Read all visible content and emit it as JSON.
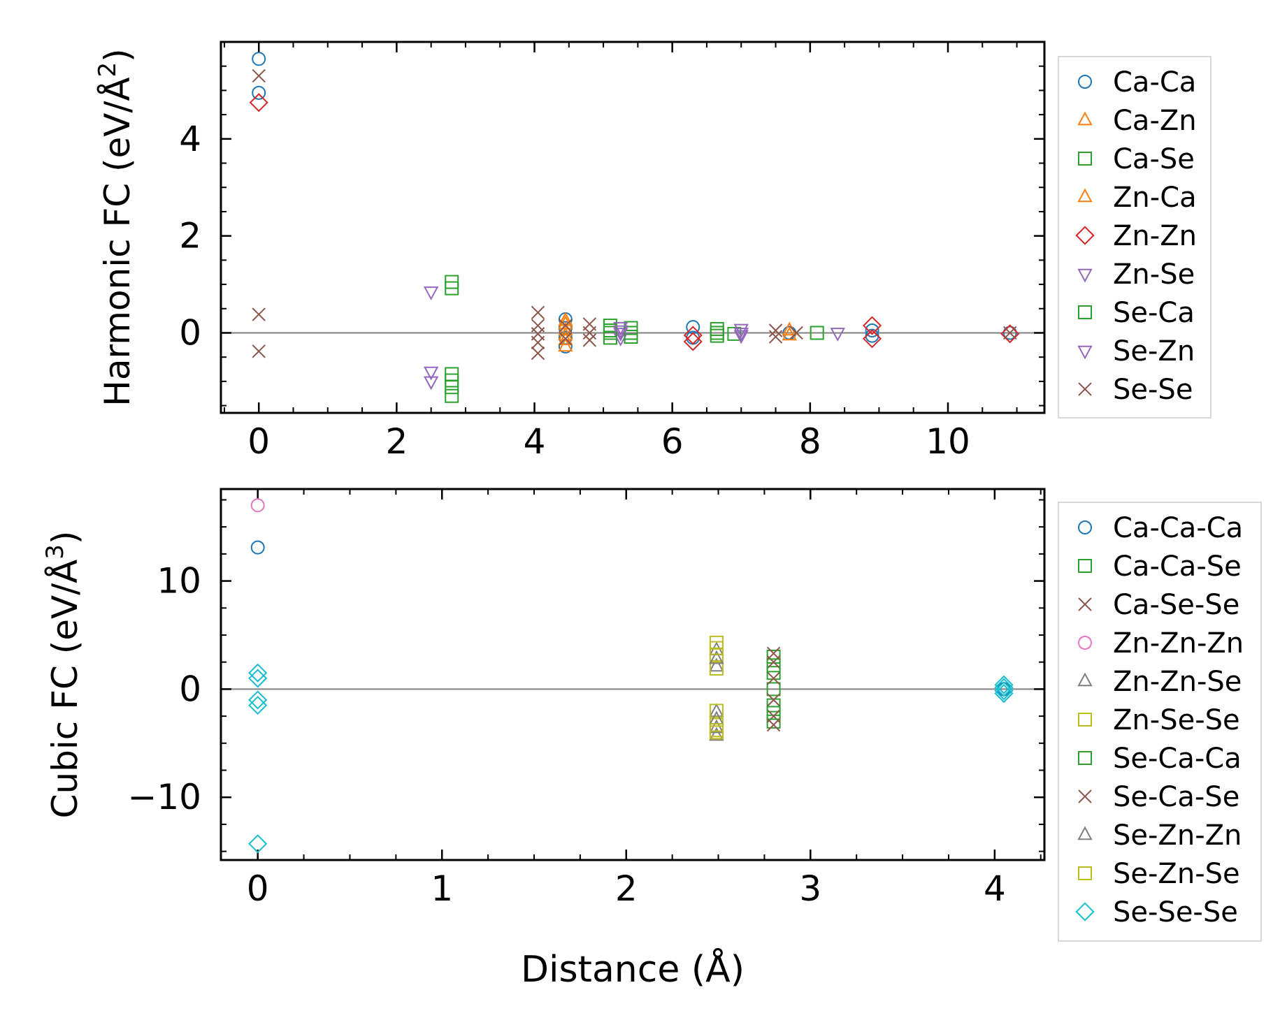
{
  "chart_data": [
    {
      "type": "scatter",
      "ylabel_prefix": "Harmonic FC (eV/Å",
      "ylabel_exp": "2",
      "ylabel_suffix": ")",
      "xlabel": "",
      "xlim": [
        -0.55,
        11.4
      ],
      "ylim": [
        -1.65,
        6.0
      ],
      "xticks": [
        0,
        2,
        4,
        6,
        8,
        10
      ],
      "xminor": 0.5,
      "yticks": [
        0,
        2,
        4
      ],
      "yminor": 0.5,
      "zero_line": true,
      "legend_position": "outside-right",
      "series": [
        {
          "name": "Ca-Ca",
          "marker": "circle",
          "color": "#1f77b4",
          "points": [
            [
              0,
              5.65
            ],
            [
              0,
              4.95
            ],
            [
              4.45,
              0.28
            ],
            [
              4.45,
              0.1
            ],
            [
              4.45,
              -0.1
            ],
            [
              4.45,
              -0.28
            ],
            [
              6.3,
              0.12
            ],
            [
              6.3,
              -0.1
            ],
            [
              7.7,
              0.0
            ],
            [
              8.9,
              0.05
            ],
            [
              8.9,
              -0.06
            ],
            [
              10.9,
              0.0
            ]
          ]
        },
        {
          "name": "Ca-Zn",
          "marker": "triangle-up",
          "color": "#ff7f0e",
          "points": [
            [
              4.45,
              0.25
            ],
            [
              4.45,
              0.05
            ],
            [
              4.45,
              -0.15
            ],
            [
              4.45,
              -0.28
            ],
            [
              7.7,
              0.05
            ]
          ]
        },
        {
          "name": "Ca-Se",
          "marker": "square",
          "color": "#2ca02c",
          "points": [
            [
              2.8,
              1.05
            ],
            [
              2.8,
              0.92
            ],
            [
              2.8,
              -0.85
            ],
            [
              2.8,
              -0.98
            ],
            [
              2.8,
              -1.12
            ],
            [
              2.8,
              -1.3
            ],
            [
              5.1,
              0.15
            ],
            [
              5.1,
              0.0
            ],
            [
              5.1,
              -0.1
            ],
            [
              5.4,
              0.1
            ],
            [
              5.4,
              -0.08
            ],
            [
              6.65,
              0.08
            ],
            [
              6.65,
              -0.06
            ],
            [
              6.9,
              -0.02
            ],
            [
              8.1,
              0.0
            ]
          ]
        },
        {
          "name": "Zn-Ca",
          "marker": "triangle-up",
          "color": "#ff7f0e",
          "points": [
            [
              4.45,
              0.18
            ],
            [
              4.45,
              -0.05
            ],
            [
              7.7,
              -0.05
            ]
          ]
        },
        {
          "name": "Zn-Zn",
          "marker": "diamond",
          "color": "#d62728",
          "points": [
            [
              0,
              4.75
            ],
            [
              6.3,
              -0.05
            ],
            [
              6.3,
              -0.18
            ],
            [
              8.9,
              0.15
            ],
            [
              8.9,
              -0.12
            ],
            [
              10.9,
              -0.02
            ]
          ]
        },
        {
          "name": "Zn-Se",
          "marker": "triangle-down",
          "color": "#9467bd",
          "points": [
            [
              2.5,
              0.85
            ],
            [
              2.5,
              -0.8
            ],
            [
              2.5,
              -1.0
            ],
            [
              5.25,
              0.12
            ],
            [
              5.25,
              0.0
            ],
            [
              5.25,
              -0.1
            ],
            [
              7.0,
              0.08
            ],
            [
              7.0,
              -0.05
            ],
            [
              8.4,
              0.0
            ]
          ]
        },
        {
          "name": "Se-Ca",
          "marker": "square",
          "color": "#2ca02c",
          "points": [
            [
              5.1,
              0.05
            ],
            [
              5.4,
              0.0
            ],
            [
              6.65,
              0.0
            ]
          ]
        },
        {
          "name": "Se-Zn",
          "marker": "triangle-down",
          "color": "#9467bd",
          "points": [
            [
              5.25,
              0.05
            ],
            [
              7.0,
              0.0
            ]
          ]
        },
        {
          "name": "Se-Se",
          "marker": "x",
          "color": "#8c564b",
          "points": [
            [
              0,
              5.3
            ],
            [
              0,
              0.38
            ],
            [
              0,
              -0.38
            ],
            [
              4.05,
              0.42
            ],
            [
              4.05,
              0.15
            ],
            [
              4.05,
              -0.02
            ],
            [
              4.05,
              -0.2
            ],
            [
              4.05,
              -0.42
            ],
            [
              4.45,
              0.15
            ],
            [
              4.45,
              -0.12
            ],
            [
              4.8,
              0.18
            ],
            [
              4.8,
              0.0
            ],
            [
              4.8,
              -0.15
            ],
            [
              7.5,
              0.05
            ],
            [
              7.5,
              -0.08
            ],
            [
              7.8,
              0.0
            ],
            [
              10.9,
              0.0
            ]
          ]
        }
      ]
    },
    {
      "type": "scatter",
      "ylabel_prefix": "Cubic FC (eV/Å",
      "ylabel_exp": "3",
      "ylabel_suffix": ")",
      "xlabel": "Distance (Å)",
      "xlim": [
        -0.2,
        4.27
      ],
      "ylim": [
        -15.8,
        18.5
      ],
      "xticks": [
        0,
        1,
        2,
        3,
        4
      ],
      "xminor": 0.25,
      "yticks": [
        -10,
        0,
        10
      ],
      "yminor": 2.5,
      "zero_line": true,
      "legend_position": "outside-right",
      "series": [
        {
          "name": "Ca-Ca-Ca",
          "marker": "circle",
          "color": "#1f77b4",
          "points": [
            [
              0,
              13.1
            ],
            [
              4.05,
              0.0
            ]
          ]
        },
        {
          "name": "Ca-Ca-Se",
          "marker": "square",
          "color": "#2ca02c",
          "points": [
            [
              2.8,
              3.0
            ],
            [
              2.8,
              1.5
            ],
            [
              2.8,
              0.0
            ],
            [
              2.8,
              -1.5
            ],
            [
              2.8,
              -3.0
            ]
          ]
        },
        {
          "name": "Ca-Se-Se",
          "marker": "x",
          "color": "#8c564b",
          "points": [
            [
              2.8,
              2.5
            ],
            [
              2.8,
              1.0
            ],
            [
              2.8,
              -1.0
            ],
            [
              2.8,
              -2.5
            ]
          ]
        },
        {
          "name": "Zn-Zn-Zn",
          "marker": "circle",
          "color": "#e377c2",
          "points": [
            [
              0,
              17.0
            ]
          ]
        },
        {
          "name": "Zn-Zn-Se",
          "marker": "triangle-up",
          "color": "#7f7f7f",
          "points": [
            [
              2.49,
              3.6
            ],
            [
              2.49,
              2.1
            ],
            [
              2.49,
              -2.1
            ],
            [
              2.49,
              -3.6
            ],
            [
              2.49,
              -4.3
            ]
          ]
        },
        {
          "name": "Zn-Se-Se",
          "marker": "square",
          "color": "#bcbd22",
          "points": [
            [
              2.49,
              4.3
            ],
            [
              2.49,
              3.2
            ],
            [
              2.49,
              1.9
            ],
            [
              2.49,
              -2.0
            ],
            [
              2.49,
              -3.3
            ],
            [
              2.49,
              -4.0
            ]
          ]
        },
        {
          "name": "Se-Ca-Ca",
          "marker": "square",
          "color": "#2ca02c",
          "points": [
            [
              2.8,
              2.2
            ],
            [
              2.8,
              -2.2
            ]
          ]
        },
        {
          "name": "Se-Ca-Se",
          "marker": "x",
          "color": "#8c564b",
          "points": [
            [
              2.8,
              3.3
            ],
            [
              2.8,
              -3.3
            ]
          ]
        },
        {
          "name": "Se-Zn-Zn",
          "marker": "triangle-up",
          "color": "#7f7f7f",
          "points": [
            [
              2.49,
              2.8
            ],
            [
              2.49,
              -2.8
            ]
          ]
        },
        {
          "name": "Se-Zn-Se",
          "marker": "square",
          "color": "#bcbd22",
          "points": [
            [
              2.49,
              3.8
            ],
            [
              2.49,
              -3.8
            ]
          ]
        },
        {
          "name": "Se-Se-Se",
          "marker": "diamond",
          "color": "#17becf",
          "points": [
            [
              0,
              1.5
            ],
            [
              0,
              1.0
            ],
            [
              0,
              -1.0
            ],
            [
              0,
              -1.5
            ],
            [
              0,
              -14.3
            ],
            [
              4.05,
              0.4
            ],
            [
              4.05,
              0.15
            ],
            [
              4.05,
              -0.15
            ],
            [
              4.05,
              -0.4
            ]
          ]
        }
      ]
    }
  ]
}
